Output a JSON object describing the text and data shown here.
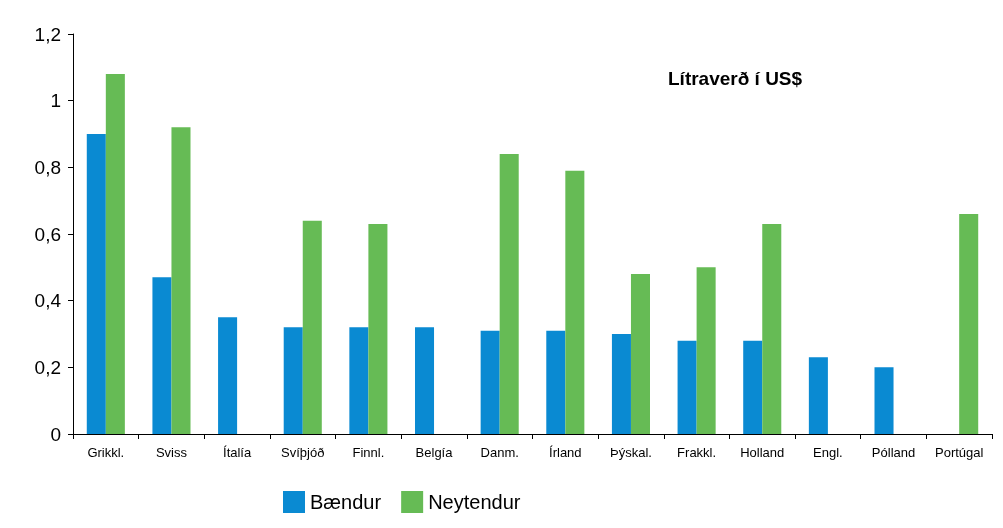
{
  "chart_data": {
    "type": "bar",
    "title": "Lítraverð í US$",
    "categories": [
      "Grikkl.",
      "Sviss",
      "Ítalía",
      "Svíþjóð",
      "Finnl.",
      "Belgía",
      "Danm.",
      "Írland",
      "Þýskal.",
      "Frakkl.",
      "Holland",
      "Engl.",
      "Pólland",
      "Portúgal"
    ],
    "series": [
      {
        "name": "Bændur",
        "color": "#0a8ad2",
        "values": [
          0.9,
          0.47,
          0.35,
          0.32,
          0.32,
          0.32,
          0.31,
          0.31,
          0.3,
          0.28,
          0.28,
          0.23,
          0.2,
          null
        ]
      },
      {
        "name": "Neytendur",
        "color": "#66bb55",
        "values": [
          1.08,
          0.92,
          null,
          0.64,
          0.63,
          null,
          0.84,
          0.79,
          0.48,
          0.5,
          0.63,
          null,
          null,
          0.66
        ]
      }
    ],
    "ylim": [
      0,
      1.2
    ],
    "yticks": [
      {
        "value": 0,
        "label": "0"
      },
      {
        "value": 0.2,
        "label": "0,2"
      },
      {
        "value": 0.4,
        "label": "0,4"
      },
      {
        "value": 0.6,
        "label": "0,6"
      },
      {
        "value": 0.8,
        "label": "0,8"
      },
      {
        "value": 1,
        "label": "1"
      },
      {
        "value": 1.2,
        "label": "1,2"
      }
    ],
    "grid": false,
    "legend": "bottom"
  }
}
